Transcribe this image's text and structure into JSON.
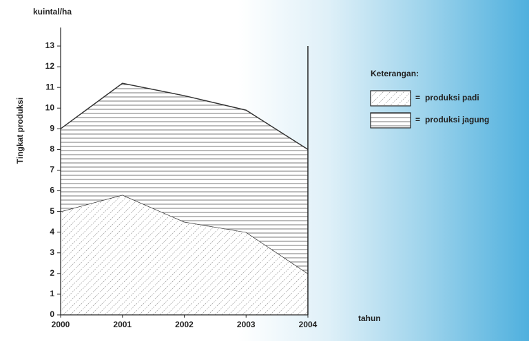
{
  "chart_data": {
    "type": "stacked-area",
    "y_label": "Tingkat produksi",
    "unit_label": "kuintal/ha",
    "x_label": "tahun",
    "x": [
      2000,
      2001,
      2002,
      2003,
      2004
    ],
    "series": [
      {
        "name": "produksi padi",
        "pattern": "diagonal",
        "values": [
          5,
          5.8,
          4.5,
          4,
          2
        ]
      },
      {
        "name": "produksi jagung",
        "pattern": "horizontal",
        "values": [
          4,
          5.4,
          6.1,
          5.9,
          6
        ]
      }
    ],
    "xlim": [
      2000,
      2004
    ],
    "xticks": [
      2000,
      2001,
      2002,
      2003,
      2004
    ],
    "ylim": [
      0,
      13
    ],
    "yticks": [
      0,
      1,
      2,
      3,
      4,
      5,
      6,
      7,
      8,
      9,
      10,
      11,
      12,
      13
    ],
    "legend_title": "Keterangan:",
    "legend_separator": "="
  }
}
